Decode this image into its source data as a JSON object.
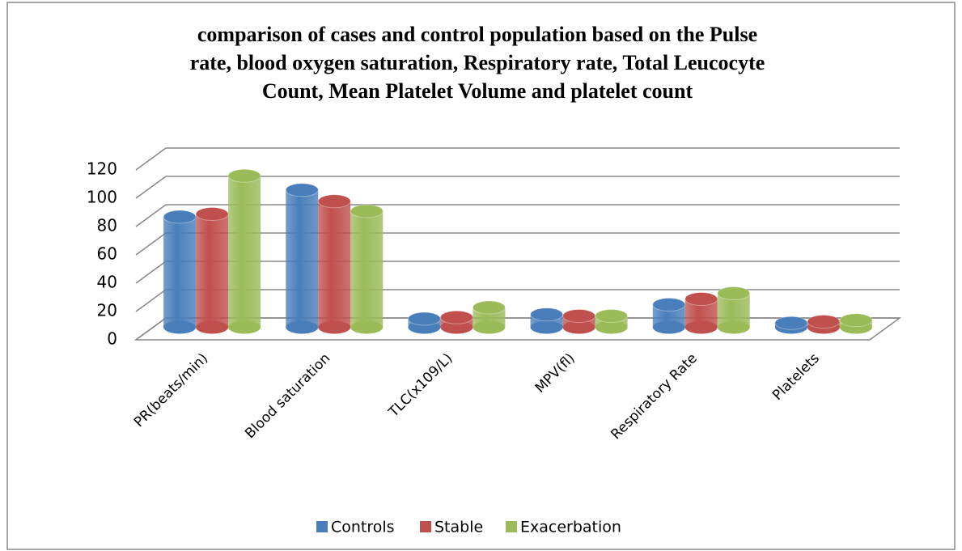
{
  "chart_data": {
    "type": "bar3d",
    "title": [
      "comparison of cases and control population based on the Pulse",
      "rate, blood oxygen saturation, Respiratory rate, Total Leucocyte",
      "Count, Mean Platelet Volume and platelet count"
    ],
    "categories": [
      "PR(beats/min)",
      "Blood saturation",
      "TLC(x109/L)",
      "MPV(fl)",
      "Respiratory Rate",
      "Platelets"
    ],
    "series": [
      {
        "name": "Controls",
        "color": "#4a7ebb",
        "values": [
          78,
          97,
          6,
          9,
          16,
          3
        ]
      },
      {
        "name": "Stable",
        "color": "#c0504d",
        "values": [
          80,
          89,
          7,
          8,
          20,
          4
        ]
      },
      {
        "name": "Exacerbation",
        "color": "#9bbb59",
        "values": [
          107,
          82,
          14,
          8,
          24,
          5
        ]
      }
    ],
    "ylim": [
      0,
      120
    ],
    "yticks": [
      0,
      20,
      40,
      60,
      80,
      100,
      120
    ],
    "grid": true,
    "legend": "bottom"
  }
}
